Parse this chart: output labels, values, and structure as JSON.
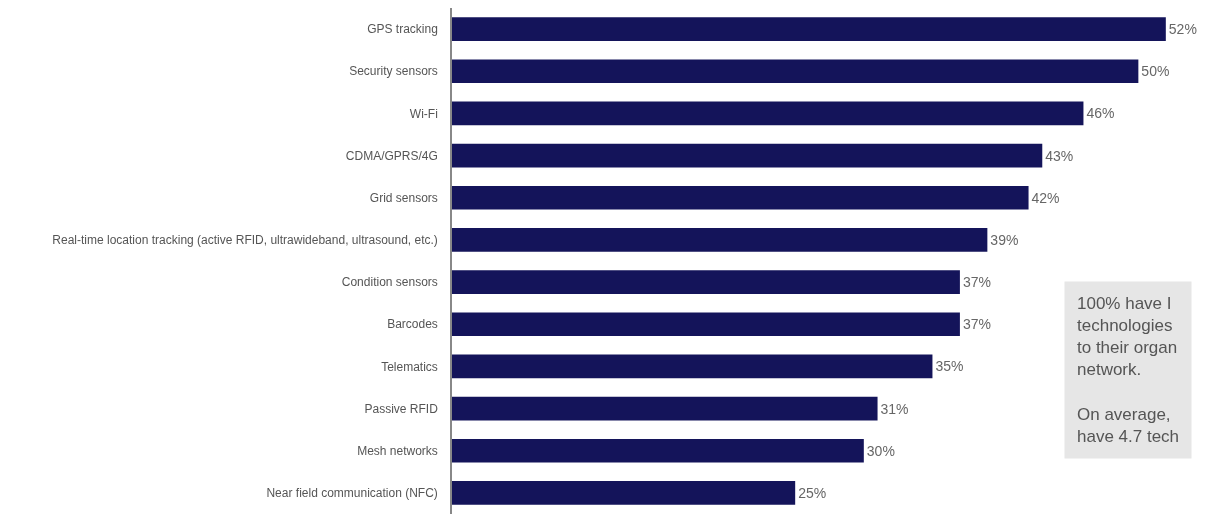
{
  "chart_data": {
    "type": "bar",
    "orientation": "horizontal",
    "categories": [
      "GPS tracking",
      "Security sensors",
      "Wi-Fi",
      "CDMA/GPRS/4G",
      "Grid sensors",
      "Real-time location tracking (active RFID, ultrawideband, ultrasound, etc.)",
      "Condition sensors",
      "Barcodes",
      "Telematics",
      "Passive RFID",
      "Mesh networks",
      "Near field communication (NFC)"
    ],
    "values": [
      52,
      50,
      46,
      43,
      42,
      39,
      37,
      37,
      35,
      31,
      30,
      25
    ],
    "value_labels": [
      "52%",
      "50%",
      "46%",
      "43%",
      "42%",
      "39%",
      "37%",
      "37%",
      "35%",
      "31%",
      "30%",
      "25%"
    ],
    "color": "#14145a",
    "xlim": [
      0,
      55
    ],
    "tick_labels": "y",
    "legend": false,
    "annotations": [
      "100% have I\ntechnologies\nto their organ\nnetwork.\n\nOn average,\nhave 4.7 tech"
    ]
  }
}
